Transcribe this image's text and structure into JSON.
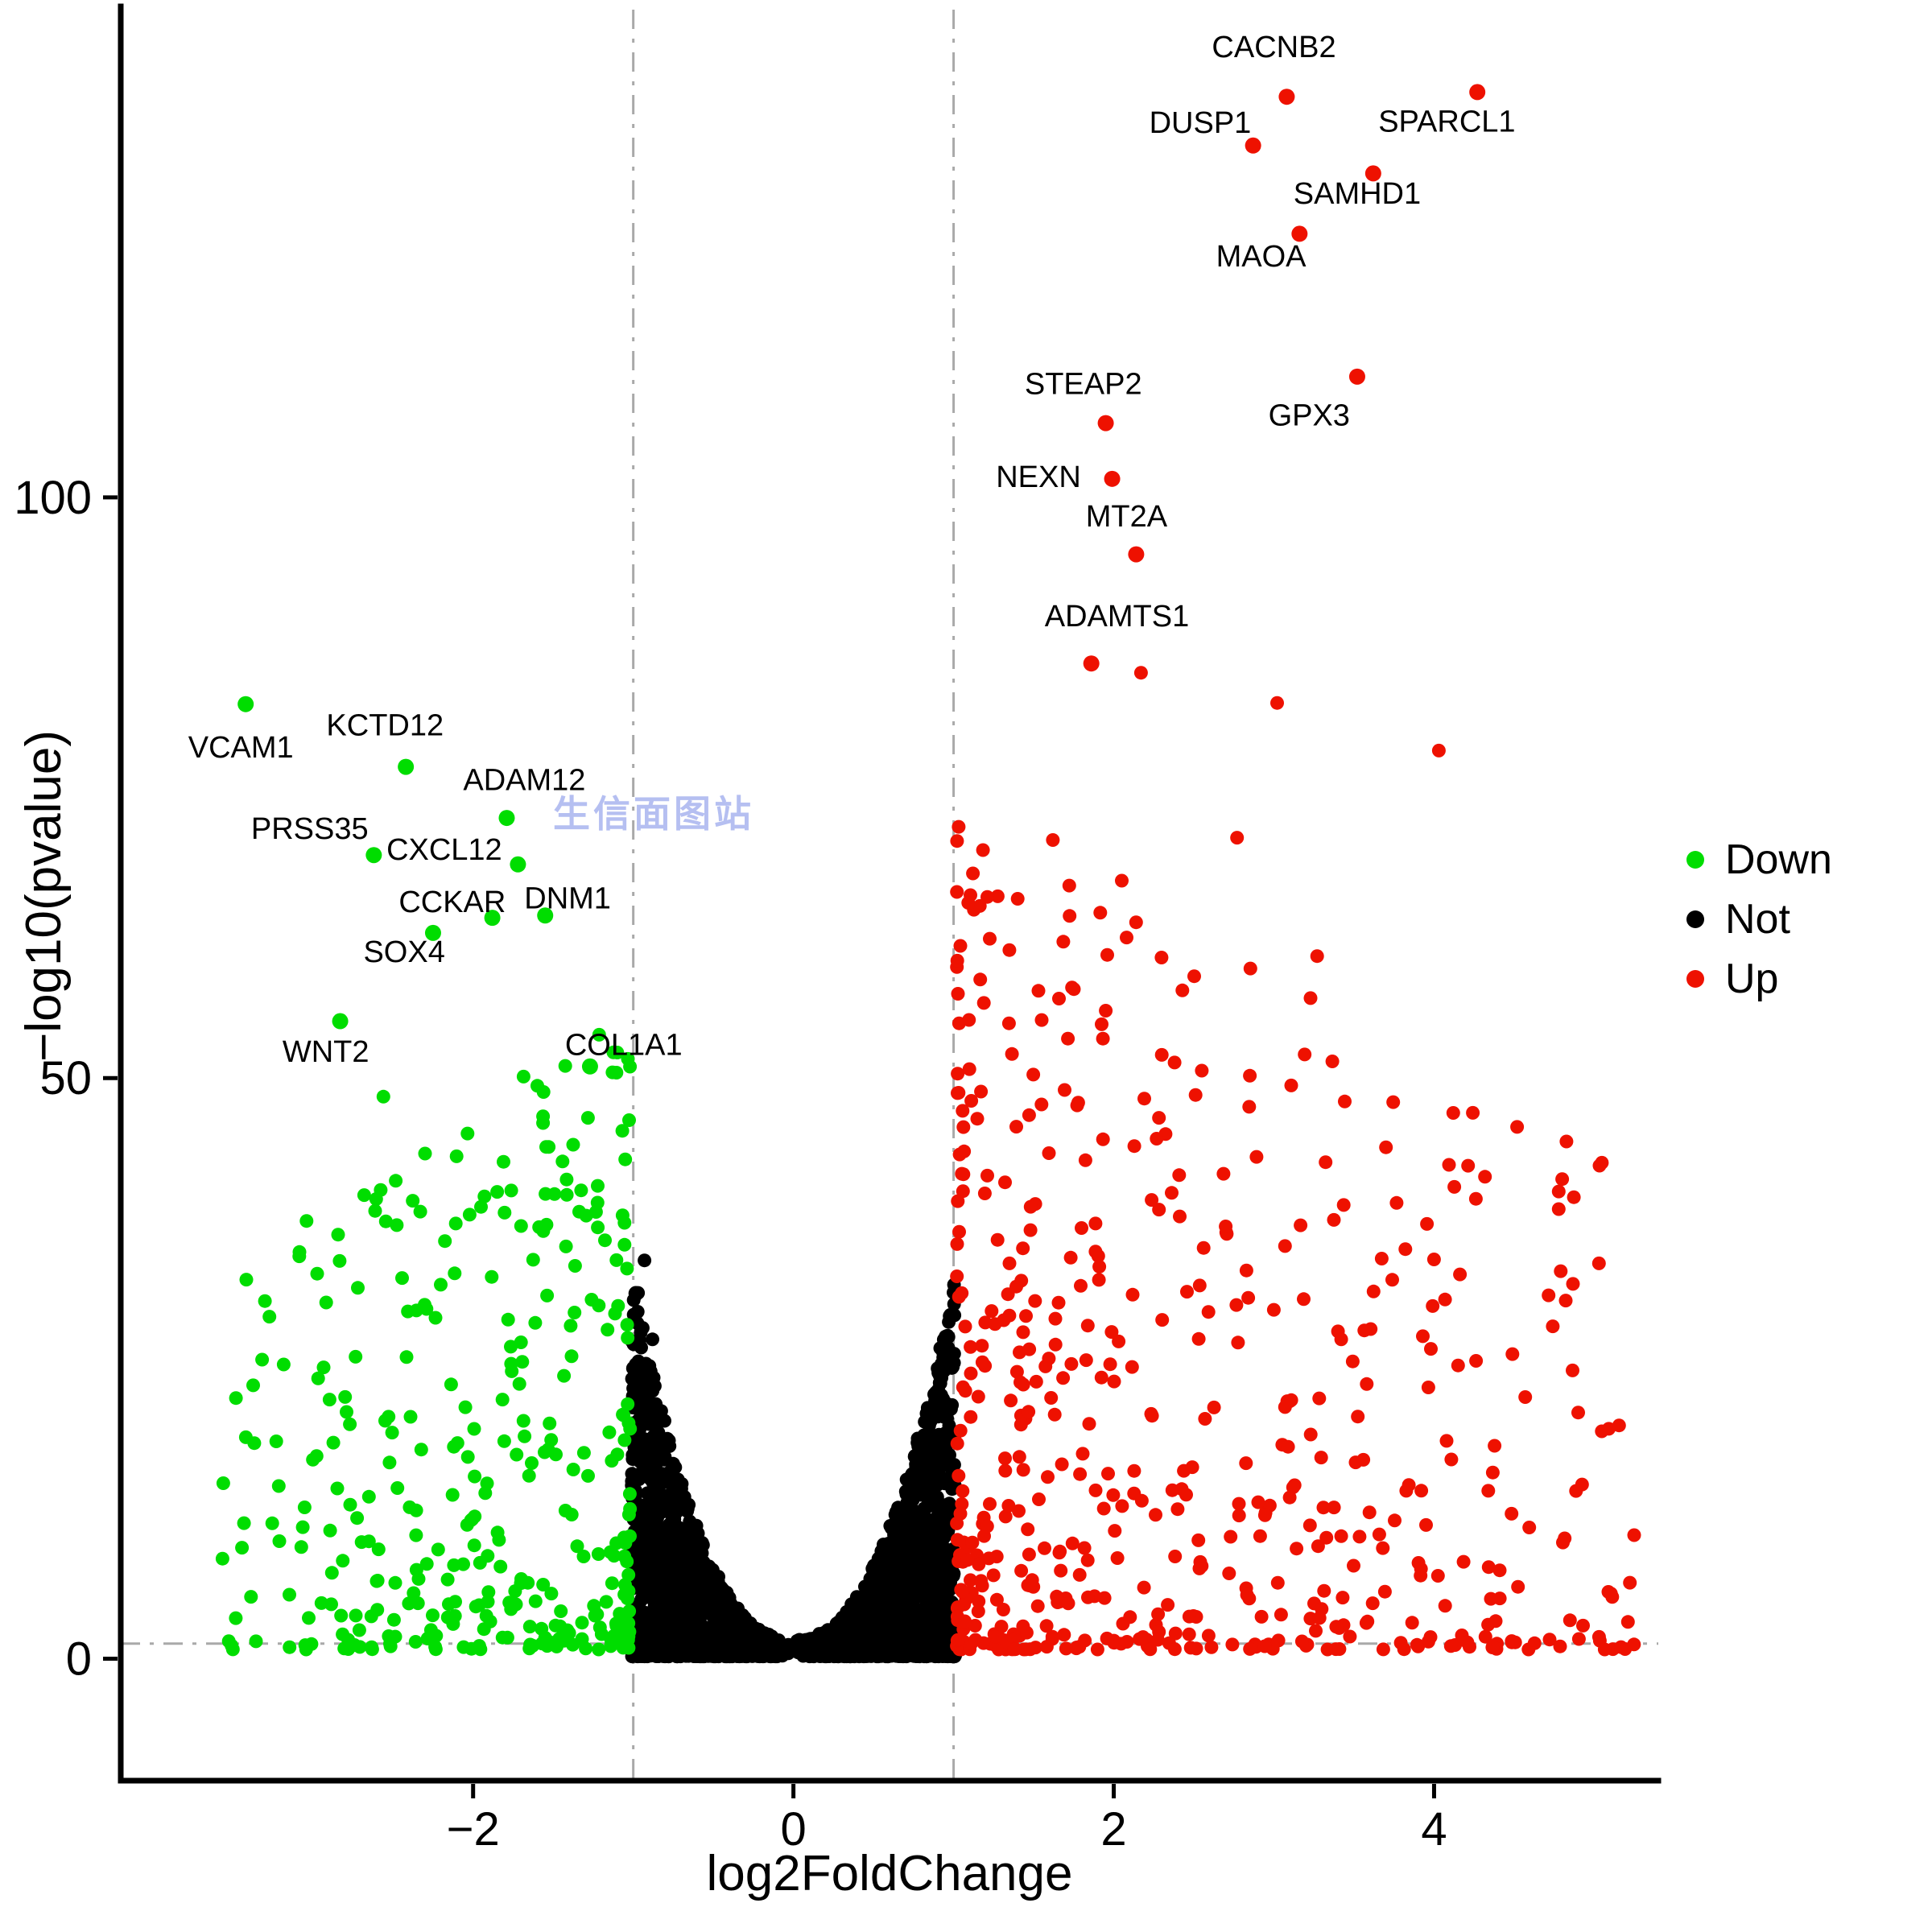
{
  "watermark": {
    "text": "生信面图站",
    "color": "#a9b4ef"
  },
  "axes": {
    "x_title": "log2FoldChange",
    "y_title": "−log10(pvalue)"
  },
  "legend": {
    "items": [
      {
        "label": "Down",
        "color": "#00DD00"
      },
      {
        "label": "Not",
        "color": "#000000"
      },
      {
        "label": "Up",
        "color": "#EE1100"
      }
    ]
  },
  "chart_data": {
    "type": "scatter",
    "title": "",
    "xlabel": "log2FoldChange",
    "ylabel": "−log10(pvalue)",
    "xlim": [
      -4.2,
      5.4
    ],
    "ylim": [
      -10.5,
      142
    ],
    "x_ticks": [
      -2,
      0,
      2,
      4
    ],
    "x_tick_labels": [
      "−2",
      "0",
      "2",
      "4"
    ],
    "y_ticks": [
      0,
      50,
      100
    ],
    "y_tick_labels": [
      "0",
      "50",
      "100"
    ],
    "grid": false,
    "legend_position": "right-middle",
    "thresholds": {
      "log2fc": [
        -1,
        1
      ],
      "pvalue_line": 1.3
    },
    "guide_color": "#A9A9A9",
    "series_colors": {
      "Down": "#00DD00",
      "Not": "#000000",
      "Up": "#EE1100"
    },
    "labeled_genes": {
      "up": [
        {
          "gene": "CACNB2",
          "x": 3.08,
          "y": 134.5,
          "lx": 3.0,
          "ly": 138.6
        },
        {
          "gene": "SPARCL1",
          "x": 4.27,
          "y": 134.9,
          "lx": 4.08,
          "ly": 132.2
        },
        {
          "gene": "DUSP1",
          "x": 2.87,
          "y": 130.3,
          "lx": 2.54,
          "ly": 132.1
        },
        {
          "gene": "SAMHD1",
          "x": 3.62,
          "y": 127.9,
          "lx": 3.52,
          "ly": 126.0
        },
        {
          "gene": "MAOA",
          "x": 3.16,
          "y": 122.7,
          "lx": 2.92,
          "ly": 120.6
        },
        {
          "gene": "GPX3",
          "x": 3.52,
          "y": 110.4,
          "lx": 3.22,
          "ly": 106.9
        },
        {
          "gene": "STEAP2",
          "x": 1.95,
          "y": 106.4,
          "lx": 1.81,
          "ly": 109.6
        },
        {
          "gene": "NEXN",
          "x": 1.99,
          "y": 101.6,
          "lx": 1.53,
          "ly": 101.6
        },
        {
          "gene": "MT2A",
          "x": 2.14,
          "y": 95.1,
          "lx": 2.08,
          "ly": 98.2
        },
        {
          "gene": "ADAMTS1",
          "x": 1.86,
          "y": 85.7,
          "lx": 2.02,
          "ly": 89.6
        }
      ],
      "down": [
        {
          "gene": "VCAM1",
          "x": -3.42,
          "y": 82.2,
          "lx": -3.45,
          "ly": 78.3
        },
        {
          "gene": "KCTD12",
          "x": -2.42,
          "y": 76.8,
          "lx": -2.55,
          "ly": 80.2
        },
        {
          "gene": "ADAM12",
          "x": -1.79,
          "y": 72.4,
          "lx": -1.68,
          "ly": 75.5
        },
        {
          "gene": "PRSS35",
          "x": -2.62,
          "y": 69.2,
          "lx": -3.02,
          "ly": 71.3
        },
        {
          "gene": "CXCL12",
          "x": -1.72,
          "y": 68.4,
          "lx": -2.18,
          "ly": 69.5
        },
        {
          "gene": "CCKAR",
          "x": -1.88,
          "y": 63.8,
          "lx": -2.13,
          "ly": 65.0
        },
        {
          "gene": "DNM1",
          "x": -1.55,
          "y": 64.0,
          "lx": -1.41,
          "ly": 65.3
        },
        {
          "gene": "SOX4",
          "x": -2.25,
          "y": 62.5,
          "lx": -2.43,
          "ly": 60.7
        },
        {
          "gene": "WNT2",
          "x": -2.83,
          "y": 54.9,
          "lx": -2.92,
          "ly": 52.1
        },
        {
          "gene": "COL1A1",
          "x": -1.27,
          "y": 51.0,
          "lx": -1.06,
          "ly": 52.7
        }
      ]
    },
    "extra_points": {
      "up": [
        [
          2.17,
          84.9
        ],
        [
          3.02,
          82.3
        ],
        [
          4.03,
          78.2
        ],
        [
          2.77,
          70.7
        ],
        [
          3.27,
          60.5
        ],
        [
          4.12,
          47.0
        ],
        [
          4.8,
          41.3
        ],
        [
          3.42,
          27.5
        ],
        [
          4.9,
          21.2
        ],
        [
          1.62,
          70.5
        ],
        [
          2.05,
          67.0
        ],
        [
          1.95,
          55.8
        ],
        [
          2.3,
          52.0
        ],
        [
          1.55,
          55.0
        ]
      ],
      "down": [
        [
          -1.56,
          48.8
        ],
        [
          -2.56,
          48.4
        ],
        [
          -2.3,
          43.5
        ],
        [
          -1.85,
          40.2
        ],
        [
          -3.04,
          37.7
        ],
        [
          -3.3,
          30.8
        ],
        [
          -1.05,
          43.0
        ],
        [
          -1.1,
          52.2
        ],
        [
          -2.33,
          38.5
        ],
        [
          -1.42,
          35.5
        ]
      ],
      "not": [
        [
          -0.93,
          34.3
        ],
        [
          0.97,
          29.0
        ],
        [
          -0.88,
          27.5
        ],
        [
          0.9,
          25.0
        ],
        [
          -0.97,
          31.5
        ]
      ]
    },
    "clouds": {
      "seed": 12345,
      "not_n": 2600,
      "down_n": 340,
      "up_n": 560
    }
  }
}
